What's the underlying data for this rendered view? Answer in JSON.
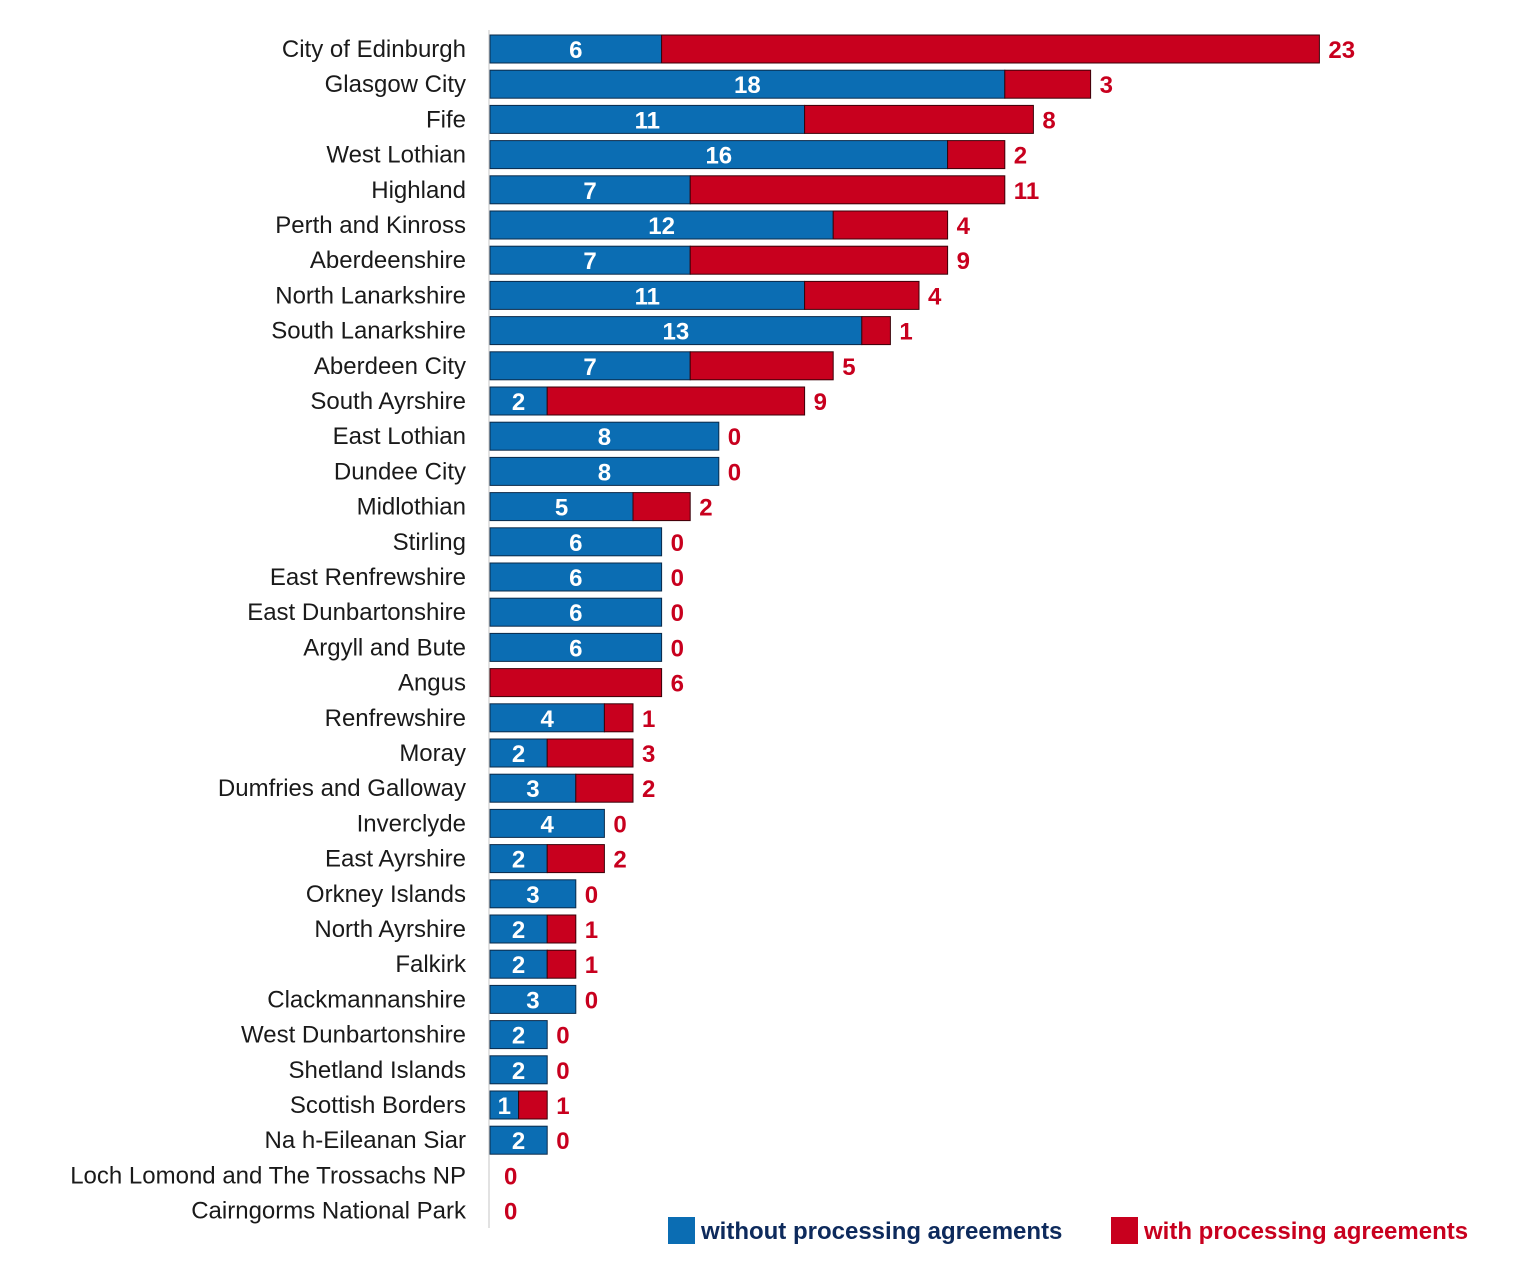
{
  "chart_data": {
    "type": "bar",
    "orientation": "horizontal",
    "stacked": true,
    "categories": [
      "City of Edinburgh",
      "Glasgow City",
      "Fife",
      "West Lothian",
      "Highland",
      "Perth and Kinross",
      "Aberdeenshire",
      "North Lanarkshire",
      "South Lanarkshire",
      "Aberdeen City",
      "South Ayrshire",
      "East Lothian",
      "Dundee City",
      "Midlothian",
      "Stirling",
      "East Renfrewshire",
      "East Dunbartonshire",
      "Argyll and Bute",
      "Angus",
      "Renfrewshire",
      "Moray",
      "Dumfries and Galloway",
      "Inverclyde",
      "East Ayrshire",
      "Orkney Islands",
      "North Ayrshire",
      "Falkirk",
      "Clackmannanshire",
      "West Dunbartonshire",
      "Shetland Islands",
      "Scottish Borders",
      "Na h-Eileanan Siar",
      "Loch Lomond and The Trossachs NP",
      "Cairngorms National Park"
    ],
    "series": [
      {
        "name": "without processing agreements",
        "color": "#0b6db3",
        "label_color": "#ffffff",
        "values": [
          6,
          18,
          11,
          16,
          7,
          12,
          7,
          11,
          13,
          7,
          2,
          8,
          8,
          5,
          6,
          6,
          6,
          6,
          0,
          4,
          2,
          3,
          4,
          2,
          3,
          2,
          2,
          3,
          2,
          2,
          1,
          2,
          0,
          0
        ]
      },
      {
        "name": "with processing agreements",
        "color": "#c8001e",
        "label_color": "#c8001e",
        "values": [
          23,
          3,
          8,
          2,
          11,
          4,
          9,
          4,
          1,
          5,
          9,
          0,
          0,
          2,
          0,
          0,
          0,
          0,
          6,
          1,
          3,
          2,
          0,
          2,
          0,
          1,
          1,
          0,
          0,
          0,
          1,
          0,
          0,
          0
        ]
      }
    ],
    "legend": {
      "position": "bottom-right",
      "items": [
        {
          "label": "without processing agreements",
          "color": "#0b6db3",
          "text_color": "#0d2a5c"
        },
        {
          "label": "with processing agreements",
          "color": "#c8001e",
          "text_color": "#c8001e"
        }
      ]
    },
    "xlim": [
      0,
      29
    ],
    "title": "",
    "xlabel": "",
    "ylabel": "",
    "grid": false
  }
}
